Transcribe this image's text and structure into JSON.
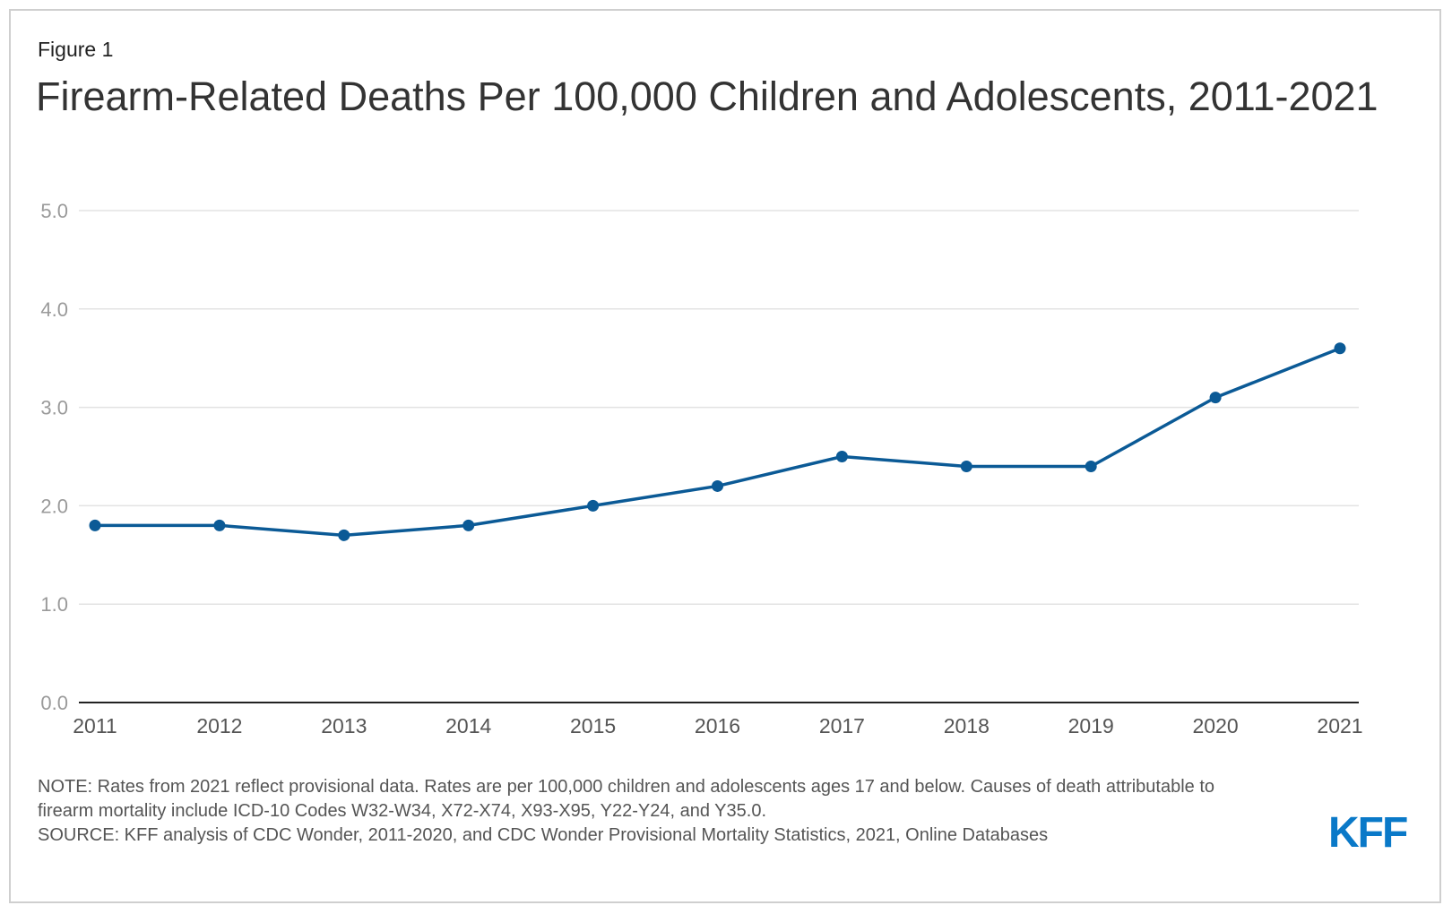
{
  "figure_label": "Figure 1",
  "chart_data": {
    "type": "line",
    "title": "Firearm-Related Deaths Per 100,000 Children and Adolescents, 2011-2021",
    "x": [
      "2011",
      "2012",
      "2013",
      "2014",
      "2015",
      "2016",
      "2017",
      "2018",
      "2019",
      "2020",
      "2021"
    ],
    "series": [
      {
        "values": [
          1.8,
          1.8,
          1.7,
          1.8,
          2.0,
          2.2,
          2.5,
          2.4,
          2.4,
          3.1,
          3.6
        ],
        "color": "#0b5a96"
      }
    ],
    "yticks": [
      "0.0",
      "1.0",
      "2.0",
      "3.0",
      "4.0",
      "5.0"
    ],
    "ylim": [
      0,
      5
    ],
    "xlabel": "",
    "ylabel": "",
    "grid": true,
    "legend": "none"
  },
  "notes": {
    "note": "NOTE: Rates from 2021 reflect provisional data. Rates are per 100,000 children and adolescents ages 17 and below. Causes of death attributable to firearm mortality include ICD-10 Codes W32-W34, X72-X74, X93-X95, Y22-Y24, and Y35.0.",
    "source": "SOURCE: KFF analysis of CDC Wonder, 2011-2020, and CDC Wonder Provisional Mortality Statistics, 2021, Online Databases"
  },
  "logo_text": "KFF",
  "colors": {
    "line": "#0b5a96",
    "logo": "#0a79c8",
    "grid": "#e3e3e3",
    "axis": "#222222",
    "tick_label": "#9a9a9a",
    "x_tick_label": "#555555"
  }
}
